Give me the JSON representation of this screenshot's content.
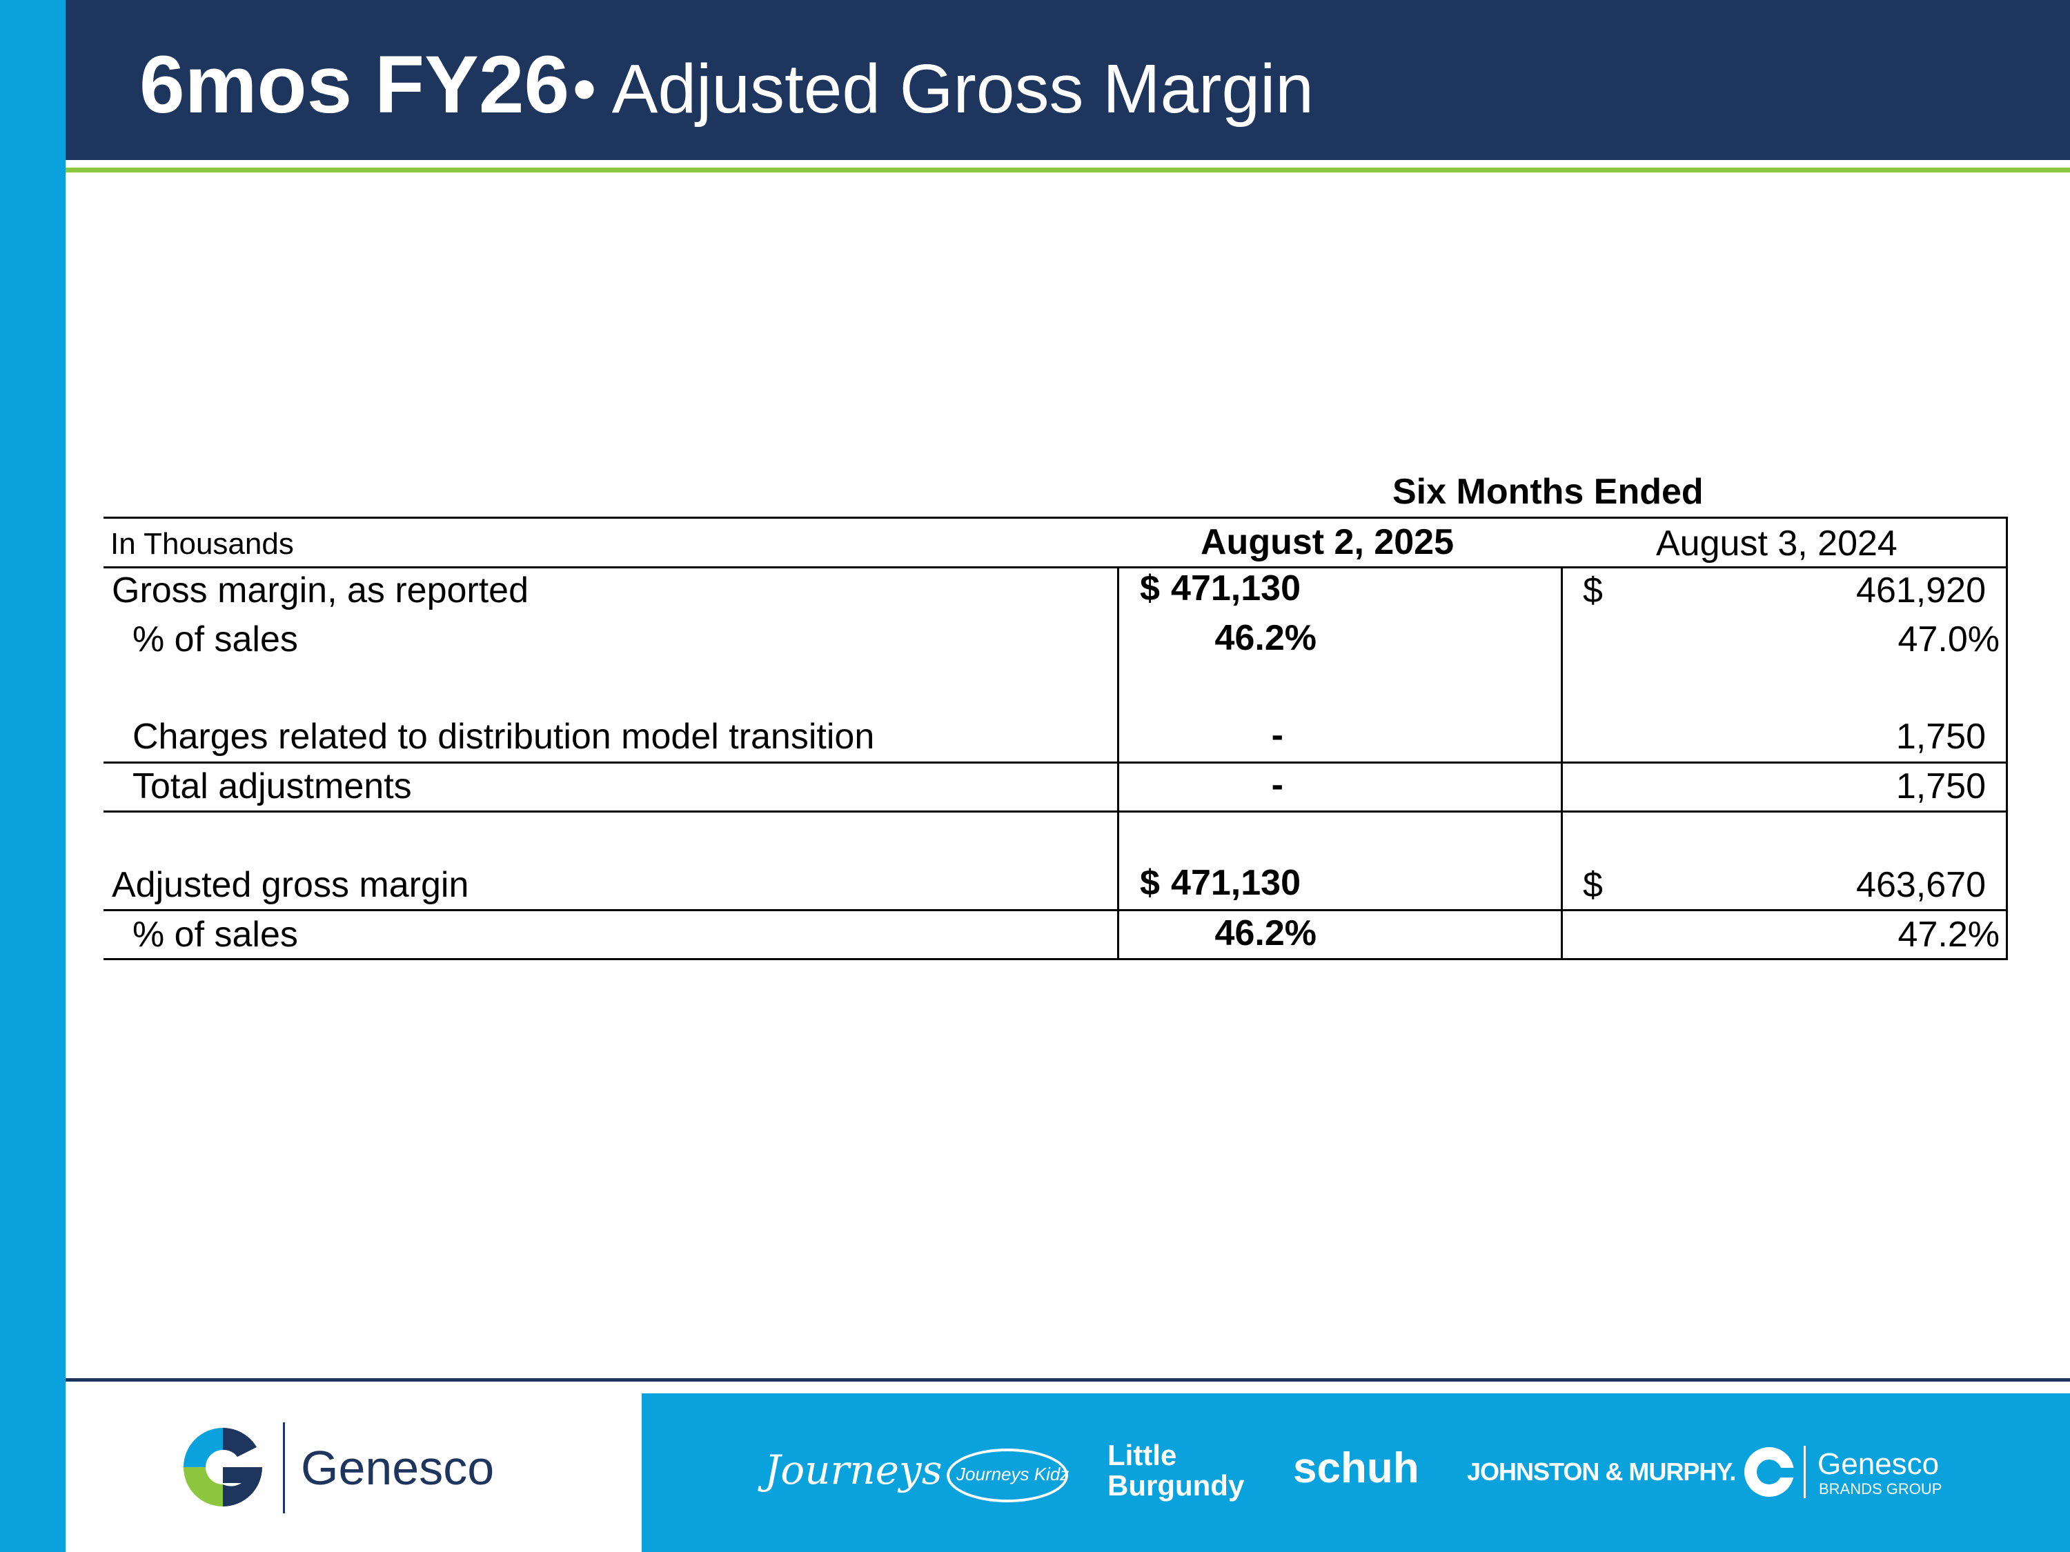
{
  "header": {
    "title_bold": "6mos FY26",
    "title_rest": "• Adjusted Gross Margin"
  },
  "table": {
    "period_header": "Six Months Ended",
    "units_label": "In Thousands",
    "col1_header": "August 2, 2025",
    "col2_header": "August 3, 2024",
    "currency_symbol": "$",
    "rows": {
      "gross_margin_reported": {
        "label": "Gross margin, as reported",
        "col1": "471,130",
        "col2": "461,920"
      },
      "pct_sales_1": {
        "label": "% of sales",
        "col1": "46.2%",
        "col2": "47.0%"
      },
      "charges_distribution": {
        "label": "Charges related to distribution model transition",
        "col1": "-",
        "col2": "1,750"
      },
      "total_adjustments": {
        "label": "Total adjustments",
        "col1": "-",
        "col2": "1,750"
      },
      "adjusted_gross_margin": {
        "label": "Adjusted gross margin",
        "col1": "471,130",
        "col2": "463,670"
      },
      "pct_sales_2": {
        "label": "% of sales",
        "col1": "46.2%",
        "col2": "47.2%"
      }
    }
  },
  "footer": {
    "logo_text": "Genesco",
    "brands": {
      "journeys": "Journeys",
      "journeys_kidz": "Journeys Kidz",
      "little_burgundy_line1": "Little",
      "little_burgundy_line2": "Burgundy",
      "schuh": "schuh",
      "johnston_murphy": "JOHNSTON & MURPHY.",
      "genesco_brands": "Genesco",
      "genesco_brands_sub": "BRANDS GROUP"
    }
  },
  "colors": {
    "navy": "#1e355e",
    "blue": "#0aa2dc",
    "green": "#8dc63f",
    "white": "#ffffff"
  }
}
